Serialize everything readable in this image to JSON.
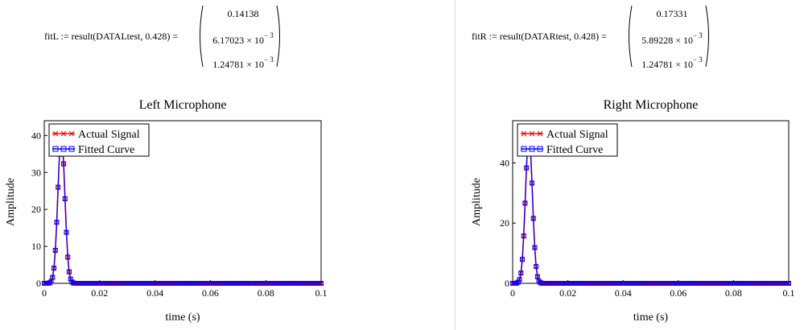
{
  "equations": [
    {
      "lhs": "fitL := result(DATALtest, 0.428) =",
      "rows": [
        {
          "mantissa": "0.14138",
          "exp": ""
        },
        {
          "mantissa": "6.17023 × 10",
          "exp": "− 3"
        },
        {
          "mantissa": "1.24781 × 10",
          "exp": "− 3"
        }
      ]
    },
    {
      "lhs": "fitR := result(DATARtest, 0.428) =",
      "rows": [
        {
          "mantissa": "0.17331",
          "exp": ""
        },
        {
          "mantissa": "5.89228 × 10",
          "exp": "− 3"
        },
        {
          "mantissa": "1.24781 × 10",
          "exp": "− 3"
        }
      ]
    }
  ],
  "chart_data": [
    {
      "type": "line",
      "title": "Left Microphone",
      "xlabel": "time (s)",
      "ylabel": "Amplitude",
      "xlim": [
        0,
        0.1
      ],
      "ylim": [
        0,
        44
      ],
      "x_ticks": [
        0,
        0.02,
        0.04,
        0.06,
        0.08,
        0.1
      ],
      "x_tick_labels": [
        "0",
        "0.02",
        "0.04",
        "0.06",
        "0.08",
        "0.1"
      ],
      "y_ticks": [
        0,
        10,
        20,
        30,
        40
      ],
      "y_tick_labels": [
        "0",
        "10",
        "20",
        "30",
        "40"
      ],
      "grid": false,
      "legend_position": "top-left",
      "peak_amplitude": 40.3,
      "center": 0.00617,
      "width": 0.00125,
      "sample_interval": 0.0005,
      "series": [
        {
          "name": "Actual Signal",
          "color": "#ff0000",
          "marker": "x"
        },
        {
          "name": "Fitted Curve",
          "color": "#0000ff",
          "marker": "square"
        }
      ]
    },
    {
      "type": "line",
      "title": "Right Microphone",
      "xlabel": "time (s)",
      "ylabel": "Amplitude",
      "xlim": [
        0,
        0.1
      ],
      "ylim": [
        0,
        54
      ],
      "x_ticks": [
        0,
        0.02,
        0.04,
        0.06,
        0.08,
        0.1
      ],
      "x_tick_labels": [
        "0",
        "0.02",
        "0.04",
        "0.06",
        "0.08",
        "0.1"
      ],
      "y_ticks": [
        0,
        20,
        40
      ],
      "y_tick_labels": [
        "0",
        "20",
        "40"
      ],
      "grid": false,
      "legend_position": "top-left",
      "peak_amplitude": 49.4,
      "center": 0.00589,
      "width": 0.00125,
      "sample_interval": 0.0005,
      "series": [
        {
          "name": "Actual Signal",
          "color": "#ff0000",
          "marker": "x"
        },
        {
          "name": "Fitted Curve",
          "color": "#0000ff",
          "marker": "square"
        }
      ]
    }
  ]
}
